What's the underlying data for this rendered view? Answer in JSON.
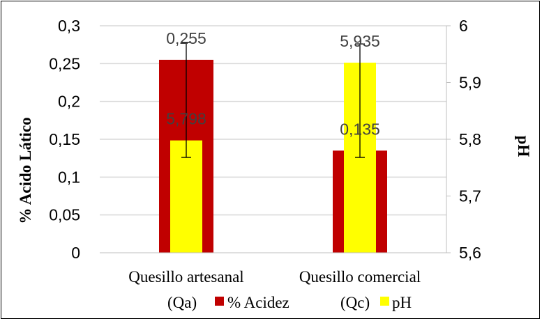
{
  "chart_data": {
    "type": "bar",
    "title": "",
    "categories": [
      "Quesillo artesanal",
      "Quesillo comercial"
    ],
    "category_suffix": [
      "(Qa)",
      "(Qc)"
    ],
    "ylabel": "% Acido Lático",
    "y2label": "pH",
    "ylim": [
      0,
      0.3
    ],
    "y2lim": [
      5.6,
      6
    ],
    "yticks": [
      "0",
      "0,05",
      "0,1",
      "0,15",
      "0,2",
      "0,25",
      "0,3"
    ],
    "y2ticks": [
      "5,6",
      "5,7",
      "5,8",
      "5,9",
      "6"
    ],
    "grid": true,
    "legend_position": "bottom",
    "series": [
      {
        "name": "% Acidez",
        "axis": "left",
        "color": "#C00000",
        "values": [
          0.255,
          0.135
        ],
        "labels": [
          "0,255",
          "0,135"
        ]
      },
      {
        "name": "pH",
        "axis": "right",
        "color": "#FFFF00",
        "values": [
          5.798,
          5.935
        ],
        "labels": [
          "5,798",
          "5,935"
        ]
      }
    ],
    "error_bars_left_axis": [
      [
        0.126,
        0.278
      ],
      [
        0.126,
        0.276
      ]
    ]
  }
}
